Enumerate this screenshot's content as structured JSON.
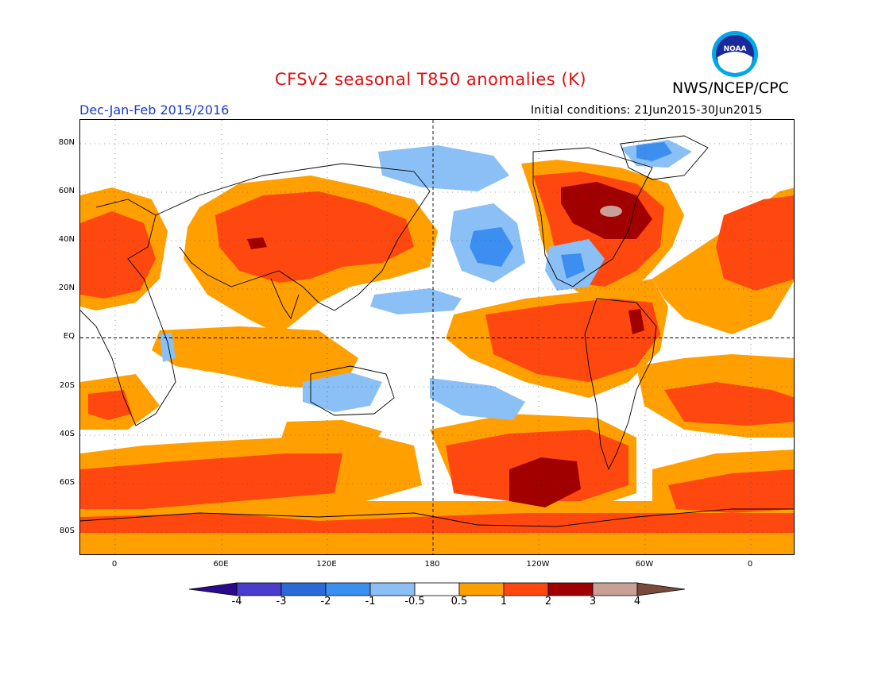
{
  "title": "CFSv2 seasonal T850 anomalies (K)",
  "agency": "NWS/NCEP/CPC",
  "season": "Dec-Jan-Feb 2015/2016",
  "initial_conditions": "Initial conditions: 21Jun2015-30Jun2015",
  "logo": {
    "text": "NOAA",
    "icon": "noaa-logo"
  },
  "map": {
    "projection": "cylindrical equidistant",
    "lat_labels": [
      "80N",
      "60N",
      "40N",
      "20N",
      "EQ",
      "20S",
      "40S",
      "60S",
      "80S"
    ],
    "lon_labels": [
      "0",
      "60E",
      "120E",
      "180",
      "120W",
      "60W",
      "0"
    ],
    "reference_lines": [
      "equator",
      "180 meridian"
    ]
  },
  "colorbar": {
    "labels": [
      "-4",
      "-3",
      "-2",
      "-1",
      "-0.5",
      "0.5",
      "1",
      "2",
      "3",
      "4"
    ],
    "colors": [
      "#2a0a8c",
      "#4a3ccc",
      "#2a6ad8",
      "#3c8ef0",
      "#8ac0f6",
      "#ffffff",
      "#ffa000",
      "#ff4810",
      "#a00000",
      "#c8a098",
      "#7a4a3c"
    ]
  },
  "palette": {
    "orange": "#ffa000",
    "red": "#ff4810",
    "darkred": "#a00000",
    "tan": "#c8a098",
    "lightblue": "#8ac0f6",
    "blue": "#3c8ef0"
  }
}
